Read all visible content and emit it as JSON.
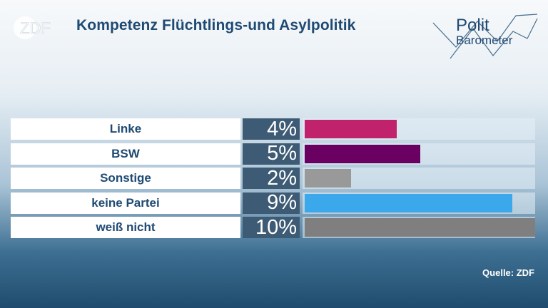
{
  "header": {
    "zdf_logo_text": "ZDF",
    "title": "Kompetenz Flüchtlings-und Asylpolitik",
    "brand_line1": "Polit",
    "brand_line2": "Barometer"
  },
  "chart_data": {
    "type": "bar",
    "orientation": "horizontal",
    "title": "Kompetenz Flüchtlings-und Asylpolitik",
    "categories": [
      "Linke",
      "BSW",
      "Sonstige",
      "keine Partei",
      "weiß nicht"
    ],
    "values": [
      4,
      5,
      2,
      9,
      10
    ],
    "value_labels": [
      "4%",
      "5%",
      "2%",
      "9%",
      "10%"
    ],
    "colors": [
      "#c0226b",
      "#6a0062",
      "#999999",
      "#3aa8ea",
      "#7f7f7f"
    ],
    "xlim": [
      0,
      10
    ],
    "grid": false,
    "legend": "none"
  },
  "footer": {
    "source": "Quelle: ZDF"
  }
}
